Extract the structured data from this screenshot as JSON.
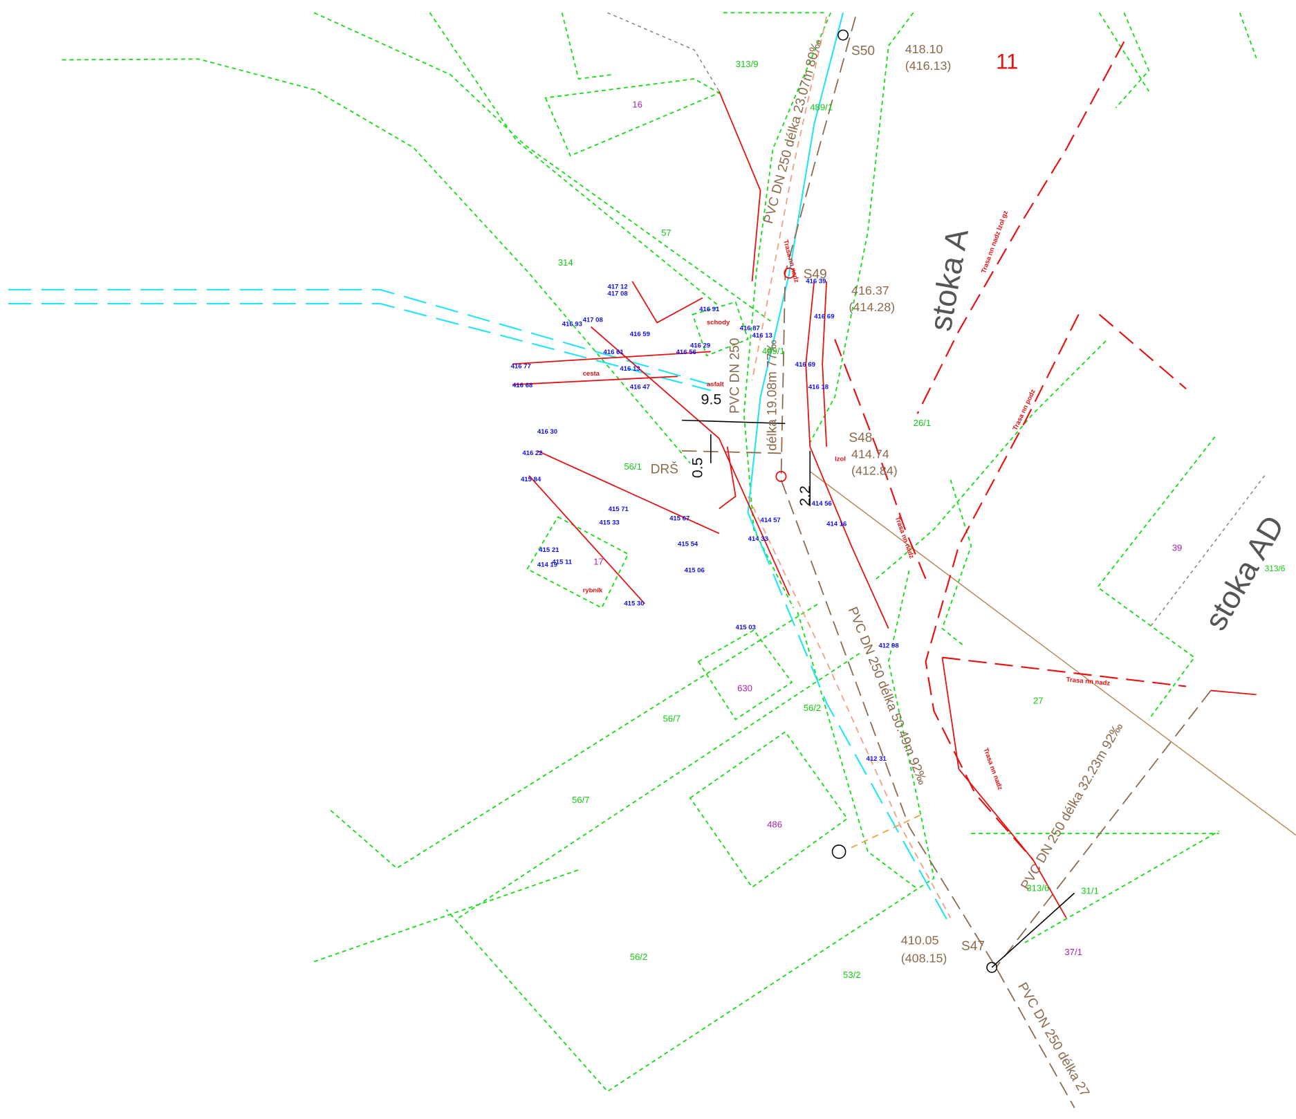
{
  "sheet_number": "11",
  "manholes": [
    {
      "name": "S50",
      "level": "418.10",
      "invert": "(416.13)"
    },
    {
      "name": "S49",
      "level": "416.37",
      "invert": "(414.28)"
    },
    {
      "name": "S48",
      "level": "414.74",
      "invert": "(412.84)"
    },
    {
      "name": "S47",
      "level": "410.05",
      "invert": "(408.15)"
    }
  ],
  "sewers": [
    "stoka A",
    "stoka AD"
  ],
  "pipes": [
    "PVC DN 250 délka 23.07m 80‰",
    "PVC DN 250",
    "délka 19.08m 77‰",
    "PVC DN 250 délka 50.49m 92‰",
    "PVC DN 250 délka 32.23m 92‰",
    "PVC DN 250 délka 27"
  ],
  "dimensions": [
    "9.5",
    "0.5",
    "2.2"
  ],
  "other": [
    "DRŠ"
  ],
  "parcels": [
    "313/9",
    "57",
    "314",
    "489/1",
    "489/1",
    "26/1",
    "56/1",
    "39",
    "313/6",
    "27",
    "56/7",
    "56/7",
    "56/2",
    "56/2",
    "313/6",
    "31/1",
    "53/2"
  ],
  "buildings": [
    "16",
    "17",
    "630",
    "486",
    "37/1"
  ],
  "notes": [
    "Trasa nn nadz lzol gz",
    "Trasa nn podz",
    "Trasa nn nadz",
    "Trasa nn nadz",
    "Trasa nn nadz",
    "Trasa nn nadz",
    "cesta",
    "asfalt",
    "schody",
    "rybník",
    "lzol"
  ],
  "spot_heights": [
    "417 12",
    "417 08",
    "416 93",
    "417 08",
    "416 59",
    "416 91",
    "416 56",
    "416 29",
    "416 87",
    "416 13",
    "416 61",
    "416 77",
    "416 68",
    "416 13",
    "416 47",
    "416 39",
    "416 69",
    "416 69",
    "416 18",
    "416 30",
    "416 22",
    "415 84",
    "415 71",
    "415 33",
    "415 67",
    "415 54",
    "415 06",
    "415 21",
    "414 19",
    "415 11",
    "415 30",
    "415 03",
    "414 57",
    "414 33",
    "414 56",
    "414 16",
    "412 98",
    "412 31"
  ]
}
